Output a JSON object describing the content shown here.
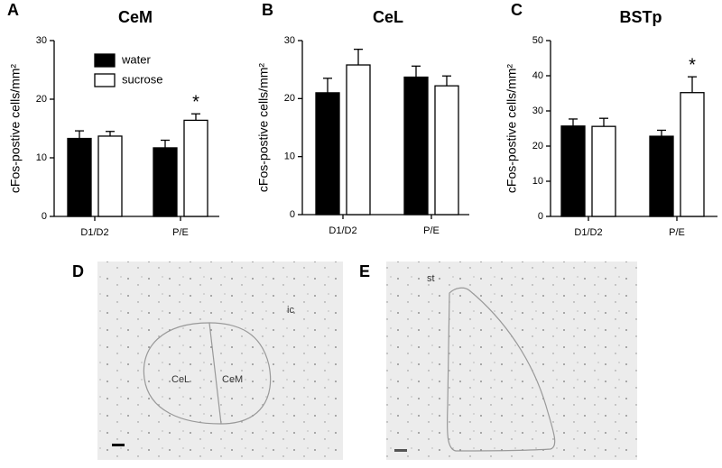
{
  "chart_data": [
    {
      "type": "bar",
      "panel": "A",
      "title": "CeM",
      "y_label": "cFos-postive cells/mm²",
      "categories": [
        "D1/D2",
        "P/E"
      ],
      "series": [
        {
          "name": "water",
          "color": "#000000",
          "values": [
            13.3,
            11.7
          ],
          "errors": [
            1.3,
            1.3
          ]
        },
        {
          "name": "sucrose",
          "color": "#ffffff",
          "values": [
            13.7,
            16.4
          ],
          "errors": [
            0.8,
            1.1
          ]
        }
      ],
      "ylim": [
        0,
        30
      ],
      "yticks": [
        0,
        10,
        20,
        30
      ],
      "legend": "upper left",
      "annotations": [
        {
          "text": "*",
          "series": "sucrose",
          "category": "P/E"
        }
      ]
    },
    {
      "type": "bar",
      "panel": "B",
      "title": "CeL",
      "y_label": "cFos-postive cells/mm²",
      "categories": [
        "D1/D2",
        "P/E"
      ],
      "series": [
        {
          "name": "water",
          "color": "#000000",
          "values": [
            21,
            23.7
          ],
          "errors": [
            2.5,
            1.9
          ]
        },
        {
          "name": "sucrose",
          "color": "#ffffff",
          "values": [
            25.8,
            22.2
          ],
          "errors": [
            2.7,
            1.7
          ]
        }
      ],
      "ylim": [
        0,
        30
      ],
      "yticks": [
        0,
        10,
        20,
        30
      ]
    },
    {
      "type": "bar",
      "panel": "C",
      "title": "BSTp",
      "y_label": "cFos-postive cells/mm²",
      "categories": [
        "D1/D2",
        "P/E"
      ],
      "series": [
        {
          "name": "water",
          "color": "#000000",
          "values": [
            25.7,
            22.8
          ],
          "errors": [
            2,
            1.7
          ]
        },
        {
          "name": "sucrose",
          "color": "#ffffff",
          "values": [
            25.6,
            35.2
          ],
          "errors": [
            2.3,
            4.5
          ]
        }
      ],
      "ylim": [
        0,
        50
      ],
      "yticks": [
        0,
        10,
        20,
        30,
        40,
        50
      ],
      "annotations": [
        {
          "text": "*",
          "series": "sucrose",
          "category": "P/E"
        }
      ]
    }
  ],
  "images": [
    {
      "panel": "D",
      "labels": [
        "CeL",
        "CeM",
        "ic"
      ]
    },
    {
      "panel": "E",
      "labels": [
        "st"
      ]
    }
  ]
}
